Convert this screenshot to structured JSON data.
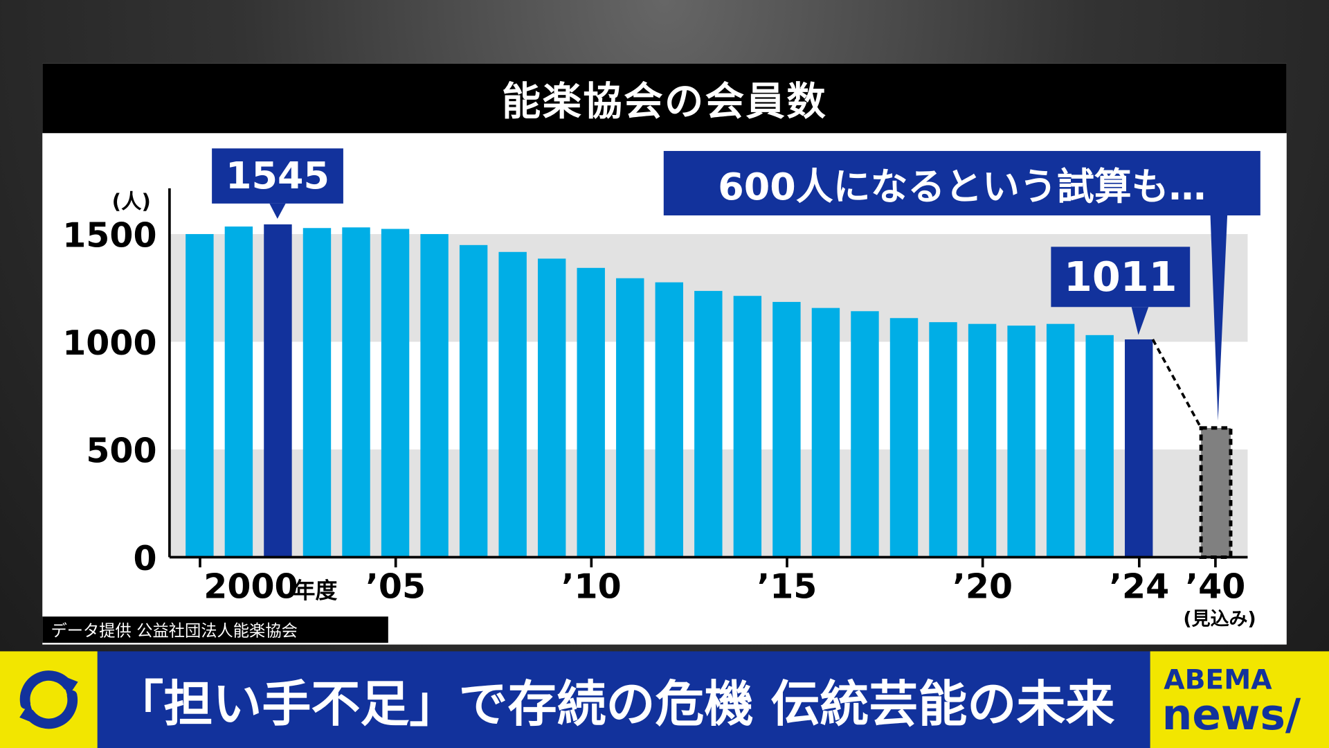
{
  "chart_data": {
    "type": "bar",
    "title": "能楽協会の会員数",
    "ylabel": "(人)",
    "ylim": [
      0,
      1700
    ],
    "yticks": [
      0,
      500,
      1000,
      1500
    ],
    "grid": "alternating bands",
    "categories": [
      "2000",
      "2001",
      "2002",
      "2003",
      "2004",
      "2005",
      "2006",
      "2007",
      "2008",
      "2009",
      "2010",
      "2011",
      "2012",
      "2013",
      "2014",
      "2015",
      "2016",
      "2017",
      "2018",
      "2019",
      "2020",
      "2021",
      "2022",
      "2023",
      "2024",
      "2040"
    ],
    "values": [
      1500,
      1535,
      1545,
      1528,
      1531,
      1524,
      1500,
      1449,
      1417,
      1386,
      1343,
      1295,
      1276,
      1236,
      1213,
      1185,
      1157,
      1142,
      1110,
      1091,
      1083,
      1075,
      1083,
      1031,
      1011,
      600
    ],
    "xtick_labels": [
      {
        "year": "2000",
        "label": "2000",
        "suffix": "年度"
      },
      {
        "year": "2005",
        "label": "’05"
      },
      {
        "year": "2010",
        "label": "’10"
      },
      {
        "year": "2015",
        "label": "’15"
      },
      {
        "year": "2020",
        "label": "’20"
      },
      {
        "year": "2024",
        "label": "’24"
      },
      {
        "year": "2040",
        "label": "’40",
        "sub": "(見込み)"
      }
    ],
    "highlight_color": "#12329c",
    "bar_color": "#00aee6",
    "projection_color": "#808080",
    "annotations": [
      {
        "year": "2002",
        "text": "1545"
      },
      {
        "year": "2024",
        "text": "1011"
      },
      {
        "year": "2040",
        "text": "600人になるという試算も…"
      }
    ]
  },
  "source": "データ提供 公益社団法人能楽協会",
  "banner": {
    "headline": "「担い手不足」で存続の危機 伝統芸能の未来",
    "logo_top": "ABEMA",
    "logo_bottom": "news/",
    "icon": "refresh-icon"
  }
}
